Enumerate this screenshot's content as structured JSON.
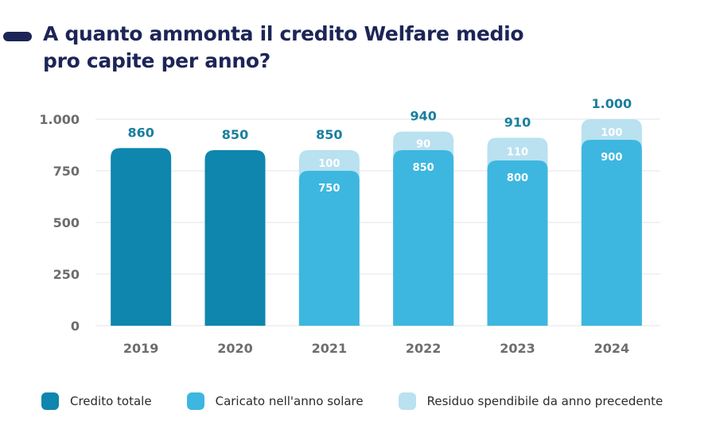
{
  "title": {
    "line1": "A quanto ammonta il credito Welfare medio",
    "line2": "pro capite per anno?"
  },
  "colors": {
    "title": "#1d2557",
    "credito_totale": "#0e86ad",
    "caricato": "#3db7e0",
    "residuo": "#b9e1f0",
    "total_label": "#1a7f9e",
    "axis_label": "#6d6d6d",
    "grid": "#e6e9ec",
    "inner_label": "#ffffff"
  },
  "chart_data": {
    "type": "bar",
    "stacked": true,
    "title": "A quanto ammonta il credito Welfare medio pro capite per anno?",
    "xlabel": "",
    "ylabel": "",
    "categories": [
      "2019",
      "2020",
      "2021",
      "2022",
      "2023",
      "2024"
    ],
    "ylim": [
      0,
      1000
    ],
    "yticks": [
      0,
      250,
      500,
      750,
      1000
    ],
    "ytick_labels": [
      "0",
      "250",
      "500",
      "750",
      "1.000"
    ],
    "grid": true,
    "legend_position": "bottom",
    "series": [
      {
        "name": "Credito totale",
        "key": "credito_totale",
        "values": [
          860,
          850,
          null,
          null,
          null,
          null
        ]
      },
      {
        "name": "Caricato nell'anno solare",
        "key": "caricato",
        "values": [
          null,
          null,
          750,
          850,
          800,
          900
        ]
      },
      {
        "name": "Residuo spendibile da anno precedente",
        "key": "residuo",
        "values": [
          null,
          null,
          100,
          90,
          110,
          100
        ]
      }
    ],
    "total_labels": [
      "860",
      "850",
      "850",
      "940",
      "910",
      "1.000"
    ],
    "caricato_labels": [
      "",
      "",
      "750",
      "850",
      "800",
      "900"
    ],
    "residuo_labels": [
      "",
      "",
      "100",
      "90",
      "110",
      "100"
    ]
  },
  "legend": [
    {
      "label": "Credito totale",
      "color_key": "credito_totale"
    },
    {
      "label": "Caricato nell'anno solare",
      "color_key": "caricato"
    },
    {
      "label": "Residuo spendibile da anno precedente",
      "color_key": "residuo"
    }
  ]
}
